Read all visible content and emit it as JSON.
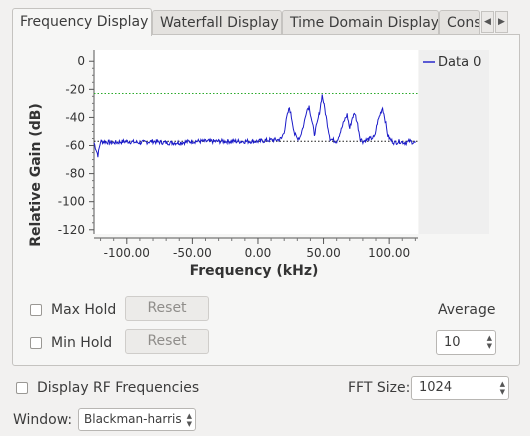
{
  "tabs": [
    {
      "label": "Frequency Display",
      "active": true
    },
    {
      "label": "Waterfall Display",
      "active": false
    },
    {
      "label": "Time Domain Display",
      "active": false
    },
    {
      "label": "Cons",
      "active": false
    }
  ],
  "tab_scroll": {
    "left_icon": "chevron-left-icon",
    "right_icon": "chevron-right-icon"
  },
  "chart_data": {
    "type": "line",
    "xlabel": "Frequency (kHz)",
    "ylabel": "Relative Gain (dB)",
    "xlim": [
      -125,
      122
    ],
    "ylim": [
      -123,
      8
    ],
    "xticks": [
      -100,
      -50,
      0,
      50,
      100
    ],
    "xtick_labels": [
      "-100.00",
      "-50.00",
      "0.00",
      "50.00",
      "100.00"
    ],
    "yticks": [
      0,
      -20,
      -40,
      -60,
      -80,
      -100,
      -120
    ],
    "ytick_labels": [
      "0",
      "-20",
      "-40",
      "-60",
      "-80",
      "-100",
      "-120"
    ],
    "grid": false,
    "legend_position": "top-right",
    "series": [
      {
        "name": "Data 0",
        "color": "#1a1ac8",
        "x": [
          -125,
          -122,
          -120,
          -110,
          -100,
          -90,
          -80,
          -70,
          -60,
          -50,
          -40,
          -30,
          -20,
          -10,
          0,
          10,
          15,
          18,
          20,
          22,
          24,
          26,
          28,
          30,
          32,
          35,
          37,
          39,
          41,
          43,
          45,
          47,
          49,
          51,
          53,
          55,
          57,
          60,
          63,
          66,
          68,
          70,
          72,
          74,
          76,
          78,
          80,
          83,
          86,
          89,
          91,
          93,
          95,
          97,
          99,
          101,
          104,
          108,
          112,
          116,
          120
        ],
        "y": [
          -58,
          -67,
          -57,
          -58,
          -57,
          -58,
          -57,
          -58,
          -58,
          -57,
          -57,
          -57,
          -57,
          -57,
          -57,
          -56,
          -56,
          -55,
          -50,
          -40,
          -33,
          -42,
          -52,
          -55,
          -54,
          -45,
          -35,
          -32,
          -42,
          -52,
          -45,
          -36,
          -24,
          -34,
          -45,
          -55,
          -56,
          -57,
          -50,
          -42,
          -38,
          -48,
          -40,
          -37,
          -45,
          -55,
          -57,
          -56,
          -55,
          -54,
          -44,
          -38,
          -33,
          -42,
          -53,
          -56,
          -58,
          -57,
          -58,
          -57,
          -58
        ]
      }
    ],
    "reference_lines": [
      {
        "y": -23,
        "color": "#2aaa2a",
        "style": "dotted"
      },
      {
        "y": -57,
        "color": "#1a1a1a",
        "style": "dotted"
      }
    ]
  },
  "controls": {
    "max_hold_label": "Max Hold",
    "min_hold_label": "Min Hold",
    "reset_label": "Reset",
    "average_label": "Average",
    "average_value": "10",
    "display_rf_label": "Display RF Frequencies",
    "fft_size_label": "FFT Size:",
    "fft_size_value": "1024",
    "window_label": "Window:",
    "window_value": "Blackman-harris"
  }
}
